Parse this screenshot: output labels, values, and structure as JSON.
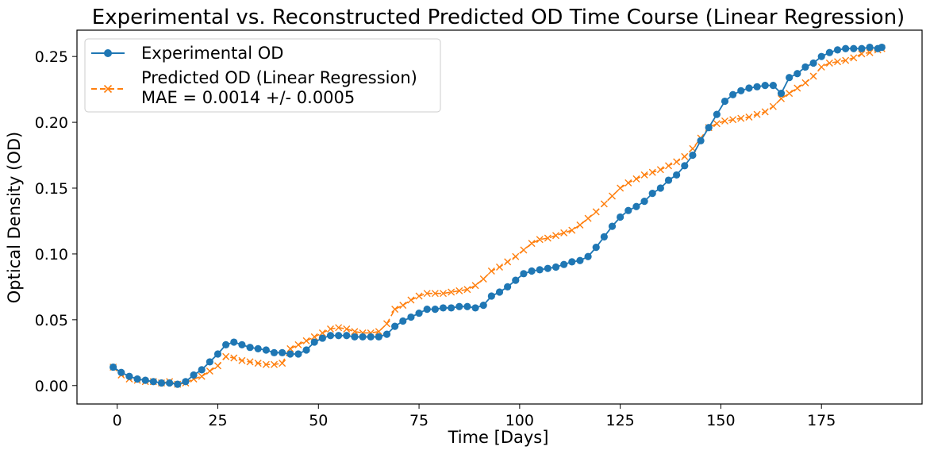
{
  "chart_data": {
    "type": "line",
    "title": "Experimental vs. Reconstructed Predicted OD Time Course (Linear Regression)",
    "xlabel": "Time [Days]",
    "ylabel": "Optical Density (OD)",
    "xlim": [
      -10,
      200
    ],
    "ylim": [
      -0.014,
      0.27
    ],
    "xticks": [
      0,
      25,
      50,
      75,
      100,
      125,
      150,
      175
    ],
    "yticks": [
      0.0,
      0.05,
      0.1,
      0.15,
      0.2,
      0.25
    ],
    "xtick_labels": [
      "0",
      "25",
      "50",
      "75",
      "100",
      "125",
      "150",
      "175"
    ],
    "ytick_labels": [
      "0.00",
      "0.05",
      "0.10",
      "0.15",
      "0.20",
      "0.25"
    ],
    "grid": false,
    "legend_position": "upper-left",
    "legend": {
      "experimental": "Experimental OD",
      "predicted_line1": "Predicted OD (Linear Regression)",
      "predicted_line2": "MAE = 0.0014 +/- 0.0005"
    },
    "colors": {
      "experimental": "#1f77b4",
      "predicted": "#ff7f0e"
    },
    "series": [
      {
        "name": "Experimental OD",
        "style": "solid-circle",
        "points": [
          [
            -1,
            0.014
          ],
          [
            1,
            0.01
          ],
          [
            3,
            0.007
          ],
          [
            5,
            0.005
          ],
          [
            7,
            0.004
          ],
          [
            9,
            0.003
          ],
          [
            11,
            0.002
          ],
          [
            13,
            0.002
          ],
          [
            15,
            0.001
          ],
          [
            17,
            0.003
          ],
          [
            19,
            0.008
          ],
          [
            21,
            0.012
          ],
          [
            23,
            0.018
          ],
          [
            25,
            0.024
          ],
          [
            27,
            0.031
          ],
          [
            29,
            0.033
          ],
          [
            31,
            0.031
          ],
          [
            33,
            0.029
          ],
          [
            35,
            0.028
          ],
          [
            37,
            0.027
          ],
          [
            39,
            0.025
          ],
          [
            41,
            0.025
          ],
          [
            43,
            0.024
          ],
          [
            45,
            0.024
          ],
          [
            47,
            0.027
          ],
          [
            49,
            0.033
          ],
          [
            51,
            0.036
          ],
          [
            53,
            0.038
          ],
          [
            55,
            0.038
          ],
          [
            57,
            0.038
          ],
          [
            59,
            0.037
          ],
          [
            61,
            0.037
          ],
          [
            63,
            0.037
          ],
          [
            65,
            0.037
          ],
          [
            67,
            0.039
          ],
          [
            69,
            0.045
          ],
          [
            71,
            0.049
          ],
          [
            73,
            0.052
          ],
          [
            75,
            0.055
          ],
          [
            77,
            0.058
          ],
          [
            79,
            0.058
          ],
          [
            81,
            0.059
          ],
          [
            83,
            0.059
          ],
          [
            85,
            0.06
          ],
          [
            87,
            0.06
          ],
          [
            89,
            0.059
          ],
          [
            91,
            0.061
          ],
          [
            93,
            0.068
          ],
          [
            95,
            0.071
          ],
          [
            97,
            0.075
          ],
          [
            99,
            0.08
          ],
          [
            101,
            0.085
          ],
          [
            103,
            0.087
          ],
          [
            105,
            0.088
          ],
          [
            107,
            0.089
          ],
          [
            109,
            0.09
          ],
          [
            111,
            0.092
          ],
          [
            113,
            0.094
          ],
          [
            115,
            0.095
          ],
          [
            117,
            0.098
          ],
          [
            119,
            0.105
          ],
          [
            121,
            0.113
          ],
          [
            123,
            0.121
          ],
          [
            125,
            0.128
          ],
          [
            127,
            0.133
          ],
          [
            129,
            0.136
          ],
          [
            131,
            0.14
          ],
          [
            133,
            0.146
          ],
          [
            135,
            0.15
          ],
          [
            137,
            0.156
          ],
          [
            139,
            0.16
          ],
          [
            141,
            0.167
          ],
          [
            143,
            0.175
          ],
          [
            145,
            0.186
          ],
          [
            147,
            0.196
          ],
          [
            149,
            0.206
          ],
          [
            151,
            0.216
          ],
          [
            153,
            0.221
          ],
          [
            155,
            0.224
          ],
          [
            157,
            0.226
          ],
          [
            159,
            0.227
          ],
          [
            161,
            0.228
          ],
          [
            163,
            0.228
          ],
          [
            165,
            0.222
          ],
          [
            167,
            0.234
          ],
          [
            169,
            0.237
          ],
          [
            171,
            0.242
          ],
          [
            173,
            0.245
          ],
          [
            175,
            0.25
          ],
          [
            177,
            0.253
          ],
          [
            179,
            0.255
          ],
          [
            181,
            0.256
          ],
          [
            183,
            0.256
          ],
          [
            185,
            0.256
          ],
          [
            187,
            0.257
          ],
          [
            189,
            0.256
          ],
          [
            190,
            0.257
          ]
        ]
      },
      {
        "name": "Predicted OD (Linear Regression)",
        "style": "dashed-x",
        "points": [
          [
            -1,
            0.014
          ],
          [
            1,
            0.008
          ],
          [
            3,
            0.005
          ],
          [
            5,
            0.004
          ],
          [
            7,
            0.003
          ],
          [
            9,
            0.003
          ],
          [
            11,
            0.002
          ],
          [
            13,
            0.003
          ],
          [
            15,
            0.001
          ],
          [
            17,
            0.002
          ],
          [
            19,
            0.005
          ],
          [
            21,
            0.007
          ],
          [
            23,
            0.011
          ],
          [
            25,
            0.015
          ],
          [
            27,
            0.022
          ],
          [
            29,
            0.021
          ],
          [
            31,
            0.019
          ],
          [
            33,
            0.018
          ],
          [
            35,
            0.017
          ],
          [
            37,
            0.016
          ],
          [
            39,
            0.016
          ],
          [
            41,
            0.017
          ],
          [
            43,
            0.028
          ],
          [
            45,
            0.031
          ],
          [
            47,
            0.034
          ],
          [
            49,
            0.037
          ],
          [
            51,
            0.04
          ],
          [
            53,
            0.043
          ],
          [
            55,
            0.044
          ],
          [
            57,
            0.043
          ],
          [
            59,
            0.041
          ],
          [
            61,
            0.04
          ],
          [
            63,
            0.04
          ],
          [
            65,
            0.041
          ],
          [
            67,
            0.047
          ],
          [
            69,
            0.058
          ],
          [
            71,
            0.061
          ],
          [
            73,
            0.065
          ],
          [
            75,
            0.068
          ],
          [
            77,
            0.07
          ],
          [
            79,
            0.07
          ],
          [
            81,
            0.07
          ],
          [
            83,
            0.071
          ],
          [
            85,
            0.072
          ],
          [
            87,
            0.073
          ],
          [
            89,
            0.076
          ],
          [
            91,
            0.081
          ],
          [
            93,
            0.087
          ],
          [
            95,
            0.09
          ],
          [
            97,
            0.094
          ],
          [
            99,
            0.098
          ],
          [
            101,
            0.103
          ],
          [
            103,
            0.108
          ],
          [
            105,
            0.111
          ],
          [
            107,
            0.112
          ],
          [
            109,
            0.114
          ],
          [
            111,
            0.116
          ],
          [
            113,
            0.118
          ],
          [
            115,
            0.122
          ],
          [
            117,
            0.127
          ],
          [
            119,
            0.132
          ],
          [
            121,
            0.138
          ],
          [
            123,
            0.144
          ],
          [
            125,
            0.15
          ],
          [
            127,
            0.154
          ],
          [
            129,
            0.157
          ],
          [
            131,
            0.16
          ],
          [
            133,
            0.162
          ],
          [
            135,
            0.164
          ],
          [
            137,
            0.167
          ],
          [
            139,
            0.17
          ],
          [
            141,
            0.174
          ],
          [
            143,
            0.18
          ],
          [
            145,
            0.188
          ],
          [
            147,
            0.196
          ],
          [
            149,
            0.199
          ],
          [
            151,
            0.201
          ],
          [
            153,
            0.202
          ],
          [
            155,
            0.203
          ],
          [
            157,
            0.204
          ],
          [
            159,
            0.206
          ],
          [
            161,
            0.208
          ],
          [
            163,
            0.212
          ],
          [
            165,
            0.218
          ],
          [
            167,
            0.222
          ],
          [
            169,
            0.226
          ],
          [
            171,
            0.23
          ],
          [
            173,
            0.235
          ],
          [
            175,
            0.242
          ],
          [
            177,
            0.245
          ],
          [
            179,
            0.246
          ],
          [
            181,
            0.247
          ],
          [
            183,
            0.249
          ],
          [
            185,
            0.252
          ],
          [
            187,
            0.253
          ],
          [
            189,
            0.255
          ],
          [
            190,
            0.256
          ]
        ]
      }
    ]
  }
}
